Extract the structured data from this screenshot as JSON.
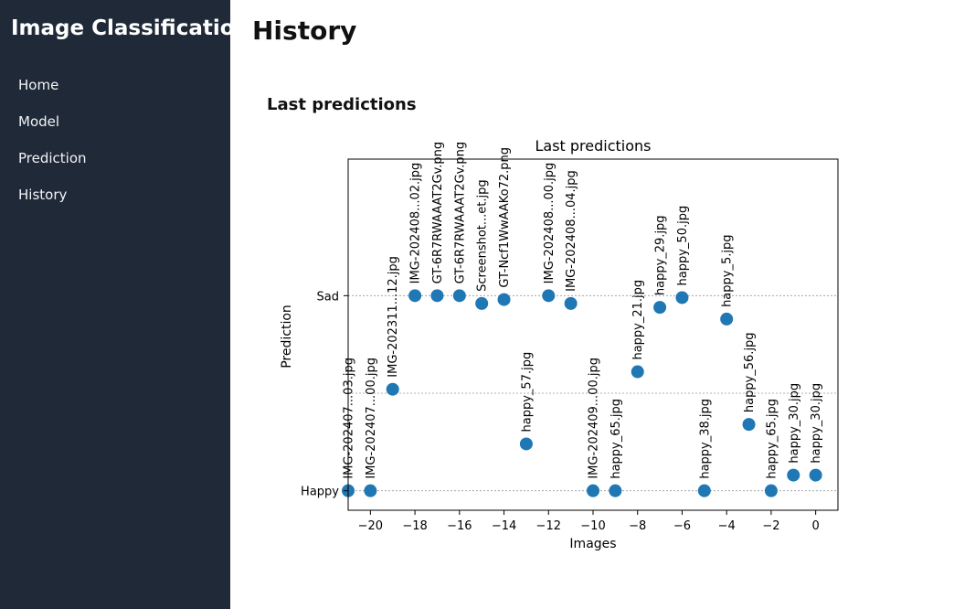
{
  "sidebar": {
    "app_title": "Image Classification",
    "items": [
      {
        "label": "Home"
      },
      {
        "label": "Model"
      },
      {
        "label": "Prediction"
      },
      {
        "label": "History"
      }
    ]
  },
  "main": {
    "page_title": "History",
    "section_heading": "Last predictions"
  },
  "colors": {
    "sidebar_bg": "#1f2937",
    "marker": "#1f77b4"
  },
  "chart_data": {
    "type": "scatter",
    "title": "Last predictions",
    "xlabel": "Images",
    "ylabel": "Prediction",
    "xlim": [
      -21,
      1
    ],
    "ylim": [
      -0.1,
      1.7
    ],
    "xticks": [
      -20,
      -18,
      -16,
      -14,
      -12,
      -10,
      -8,
      -6,
      -4,
      -2,
      0
    ],
    "yticks": [
      {
        "label": "Happy",
        "value": 0
      },
      {
        "label": "Sad",
        "value": 1
      }
    ],
    "gridlines_y": [
      0,
      0.5,
      1
    ],
    "points": [
      {
        "x": -21,
        "y": 0.0,
        "label": "IMG-202407...03.jpg"
      },
      {
        "x": -20,
        "y": 0.0,
        "label": "IMG-202407...00.jpg"
      },
      {
        "x": -19,
        "y": 0.52,
        "label": "IMG-202311...12.jpg"
      },
      {
        "x": -18,
        "y": 1.0,
        "label": "IMG-202408...02.jpg"
      },
      {
        "x": -17,
        "y": 1.0,
        "label": "GT-6R7RWAAAT2Gv.png"
      },
      {
        "x": -16,
        "y": 1.0,
        "label": "GT-6R7RWAAAT2Gv.png"
      },
      {
        "x": -15,
        "y": 0.96,
        "label": "Screenshot...et.jpg"
      },
      {
        "x": -14,
        "y": 0.98,
        "label": "GT-Ncf1WwAAKo72.png"
      },
      {
        "x": -13,
        "y": 0.24,
        "label": "happy_57.jpg"
      },
      {
        "x": -12,
        "y": 1.0,
        "label": "IMG-202408...00.jpg"
      },
      {
        "x": -11,
        "y": 0.96,
        "label": "IMG-202408...04.jpg"
      },
      {
        "x": -10,
        "y": 0.0,
        "label": "IMG-202409...00.jpg"
      },
      {
        "x": -9,
        "y": 0.0,
        "label": "happy_65.jpg"
      },
      {
        "x": -8,
        "y": 0.61,
        "label": "happy_21.jpg"
      },
      {
        "x": -7,
        "y": 0.94,
        "label": "happy_29.jpg"
      },
      {
        "x": -6,
        "y": 0.99,
        "label": "happy_50.jpg"
      },
      {
        "x": -5,
        "y": 0.0,
        "label": "happy_38.jpg"
      },
      {
        "x": -4,
        "y": 0.88,
        "label": "happy_5.jpg"
      },
      {
        "x": -3,
        "y": 0.34,
        "label": "happy_56.jpg"
      },
      {
        "x": -2,
        "y": 0.0,
        "label": "happy_65.jpg"
      },
      {
        "x": -1,
        "y": 0.08,
        "label": "happy_30.jpg"
      },
      {
        "x": 0,
        "y": 0.08,
        "label": "happy_30.jpg"
      }
    ]
  }
}
